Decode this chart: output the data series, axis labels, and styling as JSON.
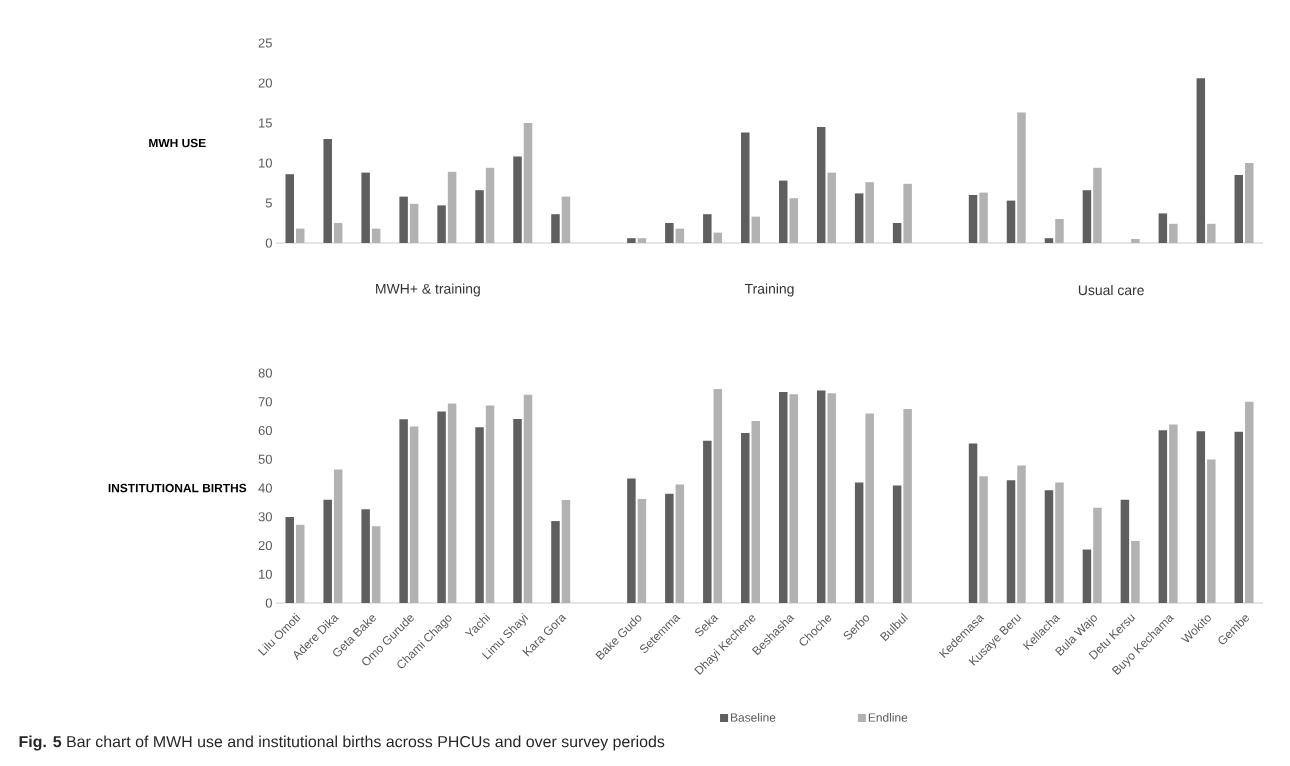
{
  "chart_data": [
    {
      "type": "bar",
      "ylabel": "MWH USE",
      "tick_labels": "y",
      "ylim": [
        0,
        25
      ],
      "yticks": [
        0,
        5,
        10,
        15,
        20,
        25
      ],
      "categories": [
        null,
        null,
        null,
        null,
        null,
        null,
        null,
        null,
        null,
        null,
        null,
        null,
        null,
        null,
        null,
        null,
        null,
        null,
        null,
        null,
        null,
        null,
        null,
        null,
        null,
        null
      ],
      "series": [
        {
          "color": "#5f5f5f",
          "values": [
            8.6,
            13.0,
            8.8,
            5.8,
            4.7,
            6.6,
            10.8,
            3.6,
            null,
            0.6,
            2.5,
            3.6,
            13.8,
            7.8,
            14.5,
            6.2,
            2.5,
            null,
            6.0,
            5.3,
            0.6,
            6.6,
            null,
            3.7,
            20.6,
            8.5
          ]
        },
        {
          "color": "#b2b2b2",
          "values": [
            1.8,
            2.5,
            1.8,
            4.9,
            8.9,
            9.4,
            15.0,
            5.8,
            null,
            0.6,
            1.8,
            1.3,
            3.3,
            5.6,
            8.8,
            7.6,
            7.4,
            null,
            6.3,
            16.3,
            3.0,
            9.4,
            0.5,
            2.4,
            2.4,
            10.0
          ]
        }
      ],
      "annotations": [
        "MWH+ & training",
        "Training",
        "Usual care"
      ]
    },
    {
      "type": "bar",
      "ylabel": "INSTITUTIONAL BIRTHS",
      "ylim": [
        0,
        80
      ],
      "yticks": [
        0,
        10,
        20,
        30,
        40,
        50,
        60,
        70,
        80
      ],
      "legend": "bottom",
      "categories": [
        "Lilu Omoti",
        "Adere Dika",
        "Geta Bake",
        "Omo Gurude",
        "Chami Chago",
        "Yachi",
        "Limu Shayi",
        "Kara Gora",
        null,
        "Bake Gudo",
        "Setemma",
        "Seka",
        "Dhayi Kechene",
        "Beshasha",
        "Choche",
        "Serbo",
        "Bulbul",
        null,
        "Kedemasa",
        "Kusaye Beru",
        "Kellacha",
        "Bula Wajo",
        "Detu Kersu",
        "Buyo Kechama",
        "Wokito",
        "Gembe"
      ],
      "series": [
        {
          "name": "Baseline",
          "color": "#5f5f5f",
          "values": [
            29.9,
            35.9,
            32.6,
            63.9,
            66.6,
            61.1,
            64.0,
            28.5,
            null,
            43.3,
            38.0,
            56.4,
            59.1,
            73.4,
            73.9,
            41.9,
            40.9,
            null,
            55.5,
            42.7,
            39.2,
            18.6,
            35.9,
            60.1,
            59.7,
            59.6
          ]
        },
        {
          "name": "Endline",
          "color": "#b2b2b2",
          "values": [
            27.2,
            46.4,
            26.7,
            61.4,
            69.4,
            68.7,
            72.4,
            35.8,
            null,
            36.2,
            41.2,
            74.4,
            63.3,
            72.6,
            73.0,
            65.9,
            67.5,
            null,
            44.1,
            47.8,
            41.9,
            33.1,
            21.6,
            62.1,
            49.9,
            70.0
          ]
        }
      ],
      "annotations": [
        "**Fig. 5** Bar chart of MWH use and institutional births across PHCUs and over survey periods"
      ]
    }
  ]
}
